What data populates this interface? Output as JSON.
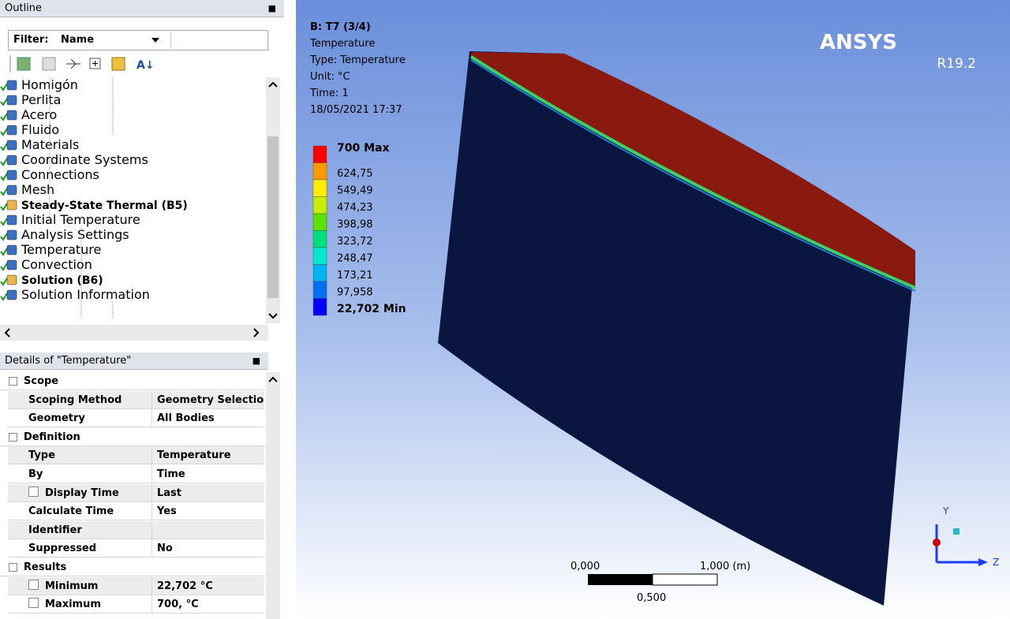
{
  "outline": {
    "title": "Outline",
    "filter_label": "Filter:",
    "filter_value": "Name",
    "tree": [
      {
        "label": "Homigón",
        "level": 4,
        "bold": false
      },
      {
        "label": "Perlita",
        "level": 4,
        "bold": false
      },
      {
        "label": "Acero",
        "level": 4,
        "bold": false
      },
      {
        "label": "Fluido",
        "level": 4,
        "bold": false
      },
      {
        "label": "Materials",
        "level": 2,
        "bold": false
      },
      {
        "label": "Coordinate Systems",
        "level": 2,
        "bold": false
      },
      {
        "label": "Connections",
        "level": 2,
        "bold": false
      },
      {
        "label": "Mesh",
        "level": 2,
        "bold": false
      },
      {
        "label": "Steady-State Thermal (B5)",
        "level": 2,
        "bold": true
      },
      {
        "label": "Initial Temperature",
        "level": 3,
        "bold": false
      },
      {
        "label": "Analysis Settings",
        "level": 3,
        "bold": false
      },
      {
        "label": "Temperature",
        "level": 3,
        "bold": false
      },
      {
        "label": "Convection",
        "level": 3,
        "bold": false
      },
      {
        "label": "Solution (B6)",
        "level": 3,
        "bold": true
      },
      {
        "label": "Solution Information",
        "level": 4,
        "bold": false
      }
    ]
  },
  "details": {
    "title": "Details of \"Temperature\"",
    "sections": [
      {
        "name": "Scope",
        "rows": [
          {
            "label": "Scoping Method",
            "value": "Geometry Selection",
            "checkbox": false
          },
          {
            "label": "Geometry",
            "value": "All Bodies",
            "checkbox": false
          }
        ]
      },
      {
        "name": "Definition",
        "rows": [
          {
            "label": "Type",
            "value": "Temperature",
            "checkbox": false
          },
          {
            "label": "By",
            "value": "Time",
            "checkbox": false
          },
          {
            "label": "Display Time",
            "value": "Last",
            "checkbox": true
          },
          {
            "label": "Calculate Time History",
            "value": "Yes",
            "checkbox": false
          },
          {
            "label": "Identifier",
            "value": "",
            "checkbox": false
          },
          {
            "label": "Suppressed",
            "value": "No",
            "checkbox": false
          }
        ]
      },
      {
        "name": "Results",
        "rows": [
          {
            "label": "Minimum",
            "value": "22,702 °C",
            "checkbox": true
          },
          {
            "label": "Maximum",
            "value": "700, °C",
            "checkbox": true
          }
        ]
      }
    ]
  },
  "viewport": {
    "info": [
      "B: T7 (3/4)",
      "Temperature",
      "Type: Temperature",
      "Unit: °C",
      "Time: 1",
      "18/05/2021 17:37"
    ],
    "legend": [
      {
        "label": "700 Max",
        "color": "#ff0000"
      },
      {
        "label": "624,75",
        "color": "#ff9900"
      },
      {
        "label": "549,49",
        "color": "#ffee00"
      },
      {
        "label": "474,23",
        "color": "#c8ee00"
      },
      {
        "label": "398,98",
        "color": "#5ce000"
      },
      {
        "label": "323,72",
        "color": "#00e07a"
      },
      {
        "label": "248,47",
        "color": "#00e8d0"
      },
      {
        "label": "173,21",
        "color": "#00b4f0"
      },
      {
        "label": "97,958",
        "color": "#0070f0"
      },
      {
        "label": "22,702 Min",
        "color": "#0000ff"
      }
    ],
    "logo": "ANSYS",
    "version": "R19.2",
    "scale": {
      "start": "0,000",
      "end": "1,000 (m)",
      "mid": "0,500"
    },
    "axes": {
      "y": "Y",
      "z": "Z"
    }
  }
}
